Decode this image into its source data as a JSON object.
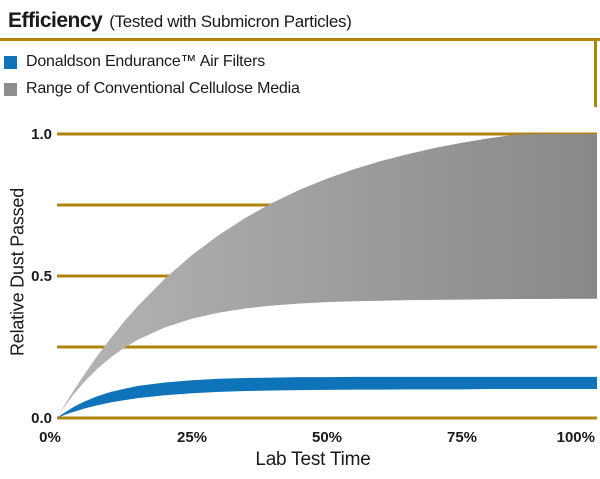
{
  "header": {
    "title": "Efficiency",
    "subtitle": "(Tested with Submicron Particles)"
  },
  "legend": {
    "items": [
      {
        "label": "Donaldson Endurance™ Air Filters",
        "swatch_color": "#0e73b9",
        "icon": "blue-square-swatch"
      },
      {
        "label": "Range of Conventional Cellulose Media",
        "swatch_color": "#908e8c",
        "icon": "gray-square-swatch"
      }
    ]
  },
  "colors": {
    "gold": "#b1830d",
    "endurance_blue": "#0e73b9",
    "band_gray_left": "#b7b5b3",
    "band_gray_right": "#8a8886",
    "legend_gray": "#908e8c",
    "text": "#1a1a1a",
    "background": "#ffffff"
  },
  "chart_data": {
    "type": "area",
    "title": "Efficiency (Tested with Submicron Particles)",
    "xlabel": "Lab Test Time",
    "ylabel": "Relative Dust Passed",
    "xlim": [
      0,
      100
    ],
    "ylim": [
      0,
      1
    ],
    "grid": "horizontal-only",
    "legend_position": "top-left",
    "x_percent": [
      0,
      1,
      2,
      3,
      4,
      5,
      7.5,
      10,
      12.5,
      15,
      20,
      25,
      30,
      35,
      40,
      45,
      50,
      55,
      60,
      65,
      70,
      75,
      80,
      85,
      90,
      95,
      100
    ],
    "series": [
      {
        "name": "Donaldson Endurance™ Air Filters",
        "style": "solid-blue",
        "upper": [
          0,
          0.014,
          0.026,
          0.038,
          0.048,
          0.057,
          0.077,
          0.092,
          0.103,
          0.113,
          0.125,
          0.133,
          0.138,
          0.141,
          0.142,
          0.144,
          0.144,
          0.145,
          0.145,
          0.145,
          0.145,
          0.145,
          0.145,
          0.145,
          0.145,
          0.145,
          0.145
        ],
        "lower": [
          0,
          0.008,
          0.015,
          0.021,
          0.027,
          0.033,
          0.045,
          0.055,
          0.063,
          0.07,
          0.08,
          0.087,
          0.092,
          0.095,
          0.097,
          0.098,
          0.099,
          0.1,
          0.1,
          0.101,
          0.101,
          0.101,
          0.102,
          0.102,
          0.102,
          0.102,
          0.102
        ]
      },
      {
        "name": "Range of Conventional Cellulose Media",
        "style": "gray-gradient",
        "upper": [
          0,
          0.032,
          0.064,
          0.094,
          0.123,
          0.152,
          0.22,
          0.282,
          0.341,
          0.395,
          0.491,
          0.574,
          0.645,
          0.706,
          0.759,
          0.804,
          0.843,
          0.876,
          0.905,
          0.929,
          0.951,
          0.969,
          0.985,
          0.998,
          1.0,
          1.0,
          1.0
        ],
        "lower": [
          0,
          0.029,
          0.056,
          0.081,
          0.104,
          0.126,
          0.174,
          0.214,
          0.248,
          0.276,
          0.319,
          0.35,
          0.371,
          0.386,
          0.396,
          0.403,
          0.408,
          0.411,
          0.413,
          0.415,
          0.416,
          0.417,
          0.418,
          0.419,
          0.419,
          0.42,
          0.42
        ]
      }
    ],
    "x_ticks": {
      "values": [
        0,
        25,
        50,
        75,
        100
      ],
      "labels": [
        "0%",
        "25%",
        "50%",
        "75%",
        "100%"
      ]
    },
    "y_ticks": {
      "values": [
        0,
        0.5,
        1
      ],
      "labels": [
        "0.0",
        "0.5",
        "1.0"
      ]
    },
    "gridline_values": [
      0,
      0.25,
      0.5,
      0.75,
      1
    ]
  }
}
